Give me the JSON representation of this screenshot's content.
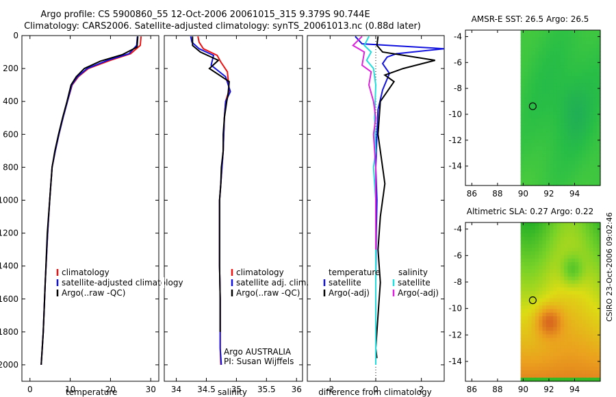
{
  "header": {
    "line1": "Argo profile: CS 5900860_55 12-Oct-2006 20061015_315 9.379S 90.744E",
    "line2": "Climatology: CARS2006. Satellite-adjusted climatology: synTS_20061013.nc (0.88d later)"
  },
  "side_text": "CSIRO 23-Oct-2006 09:02:46",
  "colors": {
    "climatology": "#ee1111",
    "satellite": "#1111dd",
    "argo": "#000000",
    "sal_satellite": "#22dddd",
    "sal_argo": "#dd22dd"
  },
  "chart_data": [
    {
      "id": "temperature",
      "type": "line",
      "xlabel": "temperature",
      "ylabel": "",
      "xlim": [
        -2,
        32
      ],
      "ylim": [
        0,
        2100
      ],
      "y_reversed": true,
      "xticks": [
        "0",
        "10",
        "20",
        "30"
      ],
      "xtick_values": [
        0,
        10,
        20,
        30
      ],
      "yticks": [
        "0",
        "200",
        "400",
        "600",
        "800",
        "1000",
        "1200",
        "1400",
        "1600",
        "1800",
        "2000"
      ],
      "ytick_values": [
        0,
        200,
        400,
        600,
        800,
        1000,
        1200,
        1400,
        1600,
        1800,
        2000
      ],
      "legend": [
        "climatology",
        "satellite-adjusted climatology",
        "Argo(..raw -QC)"
      ],
      "series": [
        {
          "name": "climatology",
          "color": "climatology",
          "x": [
            27.6,
            27.4,
            25,
            20,
            14.5,
            12,
            10.5,
            9.3,
            8.2,
            7.2,
            6.3,
            5.5,
            4.9,
            4.4,
            3.8,
            3.3,
            2.8
          ],
          "depth": [
            5,
            60,
            110,
            150,
            200,
            250,
            300,
            400,
            500,
            600,
            700,
            800,
            1000,
            1200,
            1500,
            1800,
            2000
          ]
        },
        {
          "name": "satellite-adjusted climatology",
          "color": "satellite",
          "x": [
            26.7,
            26.5,
            24.6,
            19.3,
            14.2,
            11.8,
            10.4,
            9.3,
            8.2,
            7.2,
            6.3,
            5.5,
            4.9,
            4.4,
            3.8,
            3.3,
            2.8
          ],
          "depth": [
            5,
            60,
            110,
            150,
            200,
            250,
            300,
            400,
            500,
            600,
            700,
            800,
            1000,
            1200,
            1500,
            1800,
            2000
          ]
        },
        {
          "name": "Argo(..raw -QC)",
          "color": "argo",
          "x": [
            26.8,
            26.6,
            23,
            17.5,
            13.5,
            11.5,
            10.2,
            9.2,
            8.1,
            7.1,
            6.2,
            5.5,
            4.9,
            4.3,
            3.8,
            3.3,
            2.8
          ],
          "depth": [
            5,
            70,
            115,
            155,
            200,
            250,
            300,
            400,
            500,
            600,
            700,
            800,
            1000,
            1200,
            1500,
            1800,
            2000
          ]
        }
      ]
    },
    {
      "id": "salinity",
      "type": "line",
      "xlabel": "salinity",
      "xlim": [
        33.8,
        36.1
      ],
      "ylim": [
        0,
        2100
      ],
      "y_reversed": true,
      "xticks": [
        "34",
        "34.5",
        "35",
        "35.5",
        "36"
      ],
      "xtick_values": [
        34,
        34.5,
        35,
        35.5,
        36
      ],
      "legend": [
        "climatology",
        "satellite adj. clim.",
        "Argo(..raw -QC)"
      ],
      "annotation": [
        "Argo AUSTRALIA",
        "PI: Susan Wijffels"
      ],
      "series": [
        {
          "name": "climatology",
          "color": "climatology",
          "x": [
            34.36,
            34.38,
            34.45,
            34.68,
            34.74,
            34.85,
            34.88,
            34.82,
            34.8,
            34.79,
            34.78,
            34.76,
            34.74,
            34.72,
            34.72,
            34.72,
            34.73,
            34.73,
            34.73,
            34.74
          ],
          "depth": [
            5,
            40,
            80,
            120,
            160,
            220,
            330,
            400,
            500,
            600,
            700,
            800,
            900,
            1000,
            1200,
            1400,
            1600,
            1800,
            1900,
            2000
          ]
        },
        {
          "name": "satellite adj. clim.",
          "color": "satellite",
          "x": [
            34.24,
            34.26,
            34.38,
            34.62,
            34.58,
            34.82,
            34.9,
            34.82,
            34.8,
            34.79,
            34.78,
            34.76,
            34.74,
            34.72,
            34.72,
            34.72,
            34.73,
            34.73,
            34.73,
            34.75
          ],
          "depth": [
            5,
            40,
            80,
            120,
            180,
            250,
            340,
            400,
            500,
            600,
            700,
            800,
            900,
            1000,
            1200,
            1400,
            1600,
            1800,
            1900,
            2000
          ]
        },
        {
          "name": "Argo(..raw -QC)",
          "color": "argo",
          "x": [
            34.27,
            34.27,
            34.4,
            34.7,
            34.55,
            34.88,
            34.86,
            34.84,
            34.8,
            34.78,
            34.78,
            34.75,
            34.74,
            34.72,
            34.72,
            34.72,
            34.73,
            34.73
          ],
          "depth": [
            5,
            60,
            100,
            150,
            200,
            280,
            360,
            400,
            500,
            600,
            700,
            800,
            900,
            1000,
            1200,
            1400,
            1600,
            1800
          ]
        }
      ]
    },
    {
      "id": "difference",
      "type": "line",
      "xlabel": "difference from climatology",
      "xlim": [
        -3,
        3
      ],
      "ylim": [
        0,
        2100
      ],
      "y_reversed": true,
      "xticks": [
        "-2",
        "0",
        "2"
      ],
      "xtick_values": [
        -2,
        0,
        2
      ],
      "legend_left": {
        "title": "temperature",
        "items": [
          "satellite",
          "Argo(-adj)"
        ]
      },
      "legend_right": {
        "title": "salinity",
        "items": [
          "satellite",
          "Argo(-adj)"
        ]
      },
      "series": [
        {
          "name": "temperature satellite",
          "color": "satellite",
          "x": [
            -0.9,
            -0.6,
            3.0,
            0.9,
            0.5,
            0.3,
            0.6,
            0.3,
            0.1,
            0.05,
            0.0,
            0.05,
            0.02,
            0.0,
            0.0,
            0.0
          ],
          "depth": [
            5,
            50,
            80,
            110,
            130,
            170,
            230,
            330,
            450,
            600,
            800,
            1000,
            1200,
            1500,
            1800,
            2000
          ]
        },
        {
          "name": "temperature Argo(-adj)",
          "color": "argo",
          "x": [
            0.1,
            0.05,
            0.3,
            2.6,
            1.2,
            0.4,
            0.8,
            0.2,
            0.1,
            0.3,
            0.4,
            0.2,
            0.1,
            0.2,
            0.1,
            0.0,
            0.05
          ],
          "depth": [
            5,
            60,
            100,
            150,
            200,
            240,
            280,
            400,
            600,
            800,
            900,
            1100,
            1300,
            1500,
            1700,
            1900,
            1960
          ]
        },
        {
          "name": "salinity satellite",
          "color": "sal_satellite",
          "x": [
            -0.3,
            -0.5,
            -0.2,
            -0.4,
            -0.1,
            0.0,
            -0.05,
            0.0,
            -0.1,
            0.0,
            0.0,
            0.0,
            0.0
          ],
          "depth": [
            5,
            60,
            100,
            150,
            200,
            300,
            500,
            700,
            800,
            1000,
            1400,
            1700,
            2000
          ]
        },
        {
          "name": "salinity Argo(-adj)",
          "color": "sal_argo",
          "x": [
            -0.6,
            -1.0,
            -0.5,
            -0.6,
            -0.2,
            -0.3,
            -0.1,
            0.0,
            -0.1,
            0.0,
            0.0,
            0.0
          ],
          "depth": [
            5,
            60,
            100,
            180,
            220,
            300,
            400,
            500,
            600,
            800,
            1000,
            1300
          ]
        }
      ]
    },
    {
      "id": "sst_map",
      "type": "heatmap",
      "title": "AMSR-E SST: 26.5 Argo: 26.5",
      "xlim": [
        85.5,
        96
      ],
      "ylim": [
        -15.5,
        -3.5
      ],
      "xticks": [
        "86",
        "88",
        "90",
        "92",
        "94"
      ],
      "xtick_values": [
        86,
        88,
        90,
        92,
        94
      ],
      "yticks": [
        "-4",
        "-6",
        "-8",
        "-10",
        "-12",
        "-14"
      ],
      "ytick_values": [
        -4,
        -6,
        -8,
        -10,
        -12,
        -14
      ],
      "data_lon_min": 89.8,
      "marker": {
        "lon": 90.744,
        "lat": -9.379
      }
    },
    {
      "id": "sla_map",
      "type": "heatmap",
      "title": "Altimetric SLA: 0.27 Argo: 0.22",
      "xlim": [
        85.5,
        96
      ],
      "ylim": [
        -15.5,
        -3.5
      ],
      "xticks": [
        "86",
        "88",
        "90",
        "92",
        "94"
      ],
      "xtick_values": [
        86,
        88,
        90,
        92,
        94
      ],
      "yticks": [
        "-4",
        "-6",
        "-8",
        "-10",
        "-12",
        "-14"
      ],
      "ytick_values": [
        -4,
        -6,
        -8,
        -10,
        -12,
        -14
      ],
      "data_lon_min": 89.8,
      "marker": {
        "lon": 90.744,
        "lat": -9.379
      }
    }
  ]
}
